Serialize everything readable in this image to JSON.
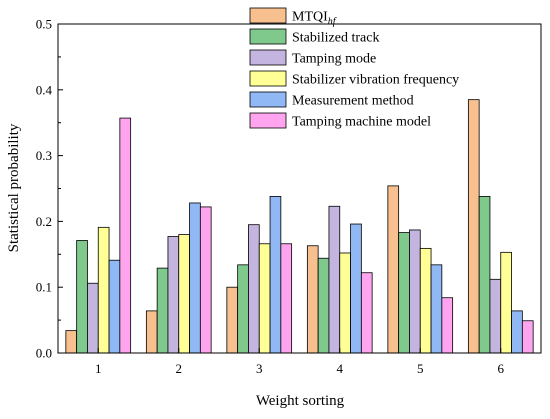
{
  "chart_data": {
    "type": "bar",
    "xlabel": "Weight sorting",
    "ylabel": "Statistical probability",
    "categories": [
      "1",
      "2",
      "3",
      "4",
      "5",
      "6"
    ],
    "ylim": [
      0,
      0.5
    ],
    "yticks": [
      "0.0",
      "0.1",
      "0.2",
      "0.3",
      "0.4",
      "0.5"
    ],
    "legend_position": "top-right",
    "grid": false,
    "series": [
      {
        "name_main": "MTQI",
        "name_sub": "hf",
        "color": "#f8c08e",
        "values": [
          0.034,
          0.064,
          0.1,
          0.163,
          0.254,
          0.385
        ]
      },
      {
        "name_main": "Stabilized track",
        "name_sub": "",
        "color": "#7fc98c",
        "values": [
          0.171,
          0.129,
          0.134,
          0.144,
          0.183,
          0.238
        ]
      },
      {
        "name_main": "Tamping mode",
        "name_sub": "",
        "color": "#c4b5e0",
        "values": [
          0.106,
          0.177,
          0.195,
          0.223,
          0.187,
          0.112
        ]
      },
      {
        "name_main": "Stabilizer vibration frequency",
        "name_sub": "",
        "color": "#ffff96",
        "values": [
          0.191,
          0.18,
          0.166,
          0.152,
          0.159,
          0.153
        ]
      },
      {
        "name_main": "Measurement method",
        "name_sub": "",
        "color": "#8fb8f5",
        "values": [
          0.141,
          0.228,
          0.238,
          0.196,
          0.134,
          0.064
        ]
      },
      {
        "name_main": "Tamping machine model",
        "name_sub": "",
        "color": "#ffa5f0",
        "values": [
          0.357,
          0.222,
          0.166,
          0.122,
          0.084,
          0.049
        ]
      }
    ]
  }
}
